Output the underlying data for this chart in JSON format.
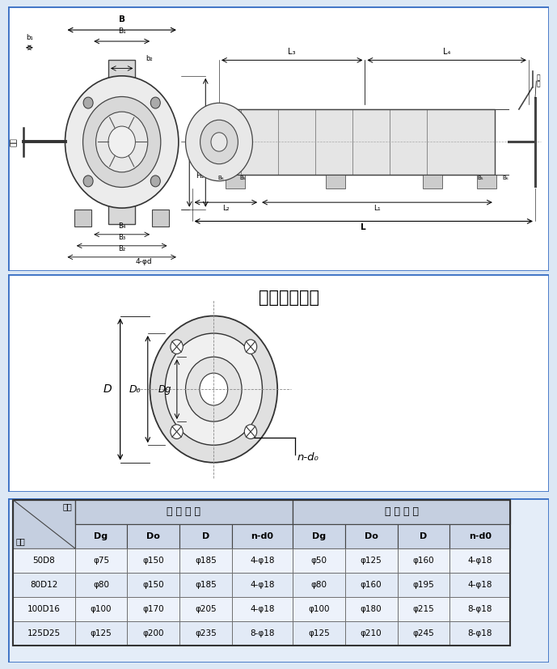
{
  "section2_title": "吸入吐出法兰",
  "bg_color": "#dce8f5",
  "border_color": "#3a70c4",
  "table_data": {
    "rows": [
      [
        "50D8",
        "φ75",
        "φ150",
        "φ185",
        "4-φ18",
        "φ50",
        "φ125",
        "φ160",
        "4-φ18"
      ],
      [
        "80D12",
        "φ80",
        "φ150",
        "φ185",
        "4-φ18",
        "φ80",
        "φ160",
        "φ195",
        "4-φ18"
      ],
      [
        "100D16",
        "φ100",
        "φ170",
        "φ205",
        "4-φ18",
        "φ100",
        "φ180",
        "φ215",
        "8-φ18"
      ],
      [
        "125D25",
        "φ125",
        "φ200",
        "φ235",
        "8-φ18",
        "φ125",
        "φ210",
        "φ245",
        "8-φ18"
      ]
    ]
  }
}
